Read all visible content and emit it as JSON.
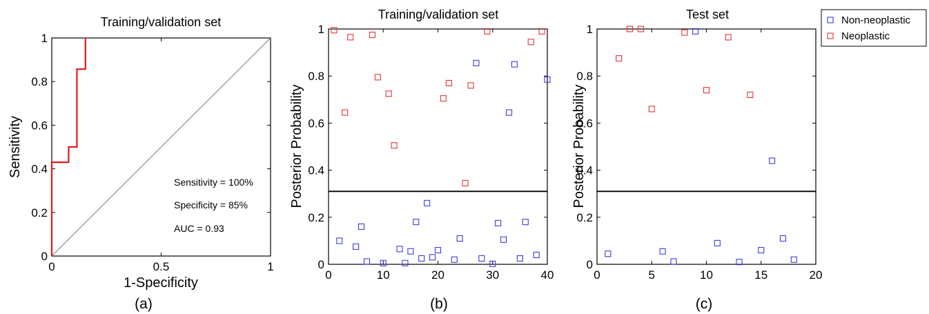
{
  "panels": {
    "a": {
      "label": "(a)"
    },
    "b": {
      "label": "(b)"
    },
    "c": {
      "label": "(c)"
    }
  },
  "legend": {
    "entries": [
      {
        "label": "Non-neoplastic",
        "color": "#3b3bdf"
      },
      {
        "label": "Neoplastic",
        "color": "#e03434"
      }
    ]
  },
  "colors": {
    "non_neoplastic": "#3b3bdf",
    "neoplastic": "#e03434",
    "roc": "#e01a1a",
    "line": "#000000"
  },
  "chart_data": [
    {
      "type": "line",
      "title": "Training/validation set",
      "xlabel": "1-Specificity",
      "ylabel": "Sensitivity",
      "xlim": [
        0,
        1
      ],
      "ylim": [
        0,
        1
      ],
      "xticks": [
        "0",
        "0.5",
        "1"
      ],
      "yticks": [
        "0",
        "0.2",
        "0.4",
        "0.6",
        "0.8",
        "1"
      ],
      "series": [
        {
          "x": [
            0,
            0,
            0.077,
            0.077,
            0.115,
            0.115,
            0.154,
            0.154
          ],
          "y": [
            0,
            0.43,
            0.43,
            0.5,
            0.5,
            0.857,
            0.857,
            1
          ]
        }
      ],
      "diagonal": [
        [
          0,
          0
        ],
        [
          1,
          1
        ]
      ],
      "annotations": [
        "Sensitivity = 100%",
        "Specificity = 85%",
        "AUC = 0.93"
      ]
    },
    {
      "type": "scatter",
      "title": "Training/validation set",
      "xlabel": "",
      "ylabel": "Posterior Probability",
      "xlim": [
        0,
        40
      ],
      "ylim": [
        0,
        1
      ],
      "xticks": [
        "0",
        "10",
        "20",
        "30",
        "40"
      ],
      "yticks": [
        "0",
        "0.2",
        "0.4",
        "0.6",
        "0.8",
        "1"
      ],
      "threshold": 0.31,
      "series": [
        {
          "name": "Non-neoplastic",
          "points": [
            [
              2,
              0.1
            ],
            [
              5,
              0.075
            ],
            [
              6,
              0.16
            ],
            [
              7,
              0.012
            ],
            [
              10,
              0.005
            ],
            [
              13,
              0.065
            ],
            [
              14,
              0.005
            ],
            [
              15,
              0.055
            ],
            [
              16,
              0.18
            ],
            [
              17,
              0.025
            ],
            [
              18,
              0.26
            ],
            [
              19,
              0.03
            ],
            [
              20,
              0.06
            ],
            [
              23,
              0.02
            ],
            [
              24,
              0.11
            ],
            [
              27,
              0.855
            ],
            [
              28,
              0.025
            ],
            [
              30,
              0.002
            ],
            [
              31,
              0.175
            ],
            [
              32,
              0.105
            ],
            [
              33,
              0.645
            ],
            [
              34,
              0.85
            ],
            [
              35,
              0.025
            ],
            [
              36,
              0.18
            ],
            [
              38,
              0.04
            ],
            [
              40,
              0.785
            ]
          ]
        },
        {
          "name": "Neoplastic",
          "points": [
            [
              1,
              0.995
            ],
            [
              3,
              0.645
            ],
            [
              4,
              0.965
            ],
            [
              8,
              0.975
            ],
            [
              9,
              0.795
            ],
            [
              11,
              0.725
            ],
            [
              12,
              0.505
            ],
            [
              21,
              0.705
            ],
            [
              22,
              0.77
            ],
            [
              25,
              0.345
            ],
            [
              26,
              0.76
            ],
            [
              29,
              0.99
            ],
            [
              37,
              0.945
            ],
            [
              39,
              0.99
            ]
          ]
        }
      ]
    },
    {
      "type": "scatter",
      "title": "Test set",
      "xlabel": "",
      "ylabel": "Posterior Probability",
      "xlim": [
        0,
        20
      ],
      "ylim": [
        0,
        1
      ],
      "xticks": [
        "0",
        "5",
        "10",
        "15",
        "20"
      ],
      "yticks": [
        "0",
        "0.2",
        "0.4",
        "0.6",
        "0.8",
        "1"
      ],
      "threshold": 0.31,
      "series": [
        {
          "name": "Non-neoplastic",
          "points": [
            [
              1,
              0.045
            ],
            [
              6,
              0.055
            ],
            [
              7,
              0.012
            ],
            [
              9,
              0.99
            ],
            [
              11,
              0.09
            ],
            [
              13,
              0.01
            ],
            [
              15,
              0.06
            ],
            [
              16,
              0.44
            ],
            [
              17,
              0.11
            ],
            [
              18,
              0.02
            ]
          ]
        },
        {
          "name": "Neoplastic",
          "points": [
            [
              2,
              0.875
            ],
            [
              3,
              1.0
            ],
            [
              4,
              1.0
            ],
            [
              5,
              0.66
            ],
            [
              8,
              0.985
            ],
            [
              10,
              0.74
            ],
            [
              12,
              0.965
            ],
            [
              14,
              0.72
            ]
          ]
        }
      ]
    }
  ]
}
